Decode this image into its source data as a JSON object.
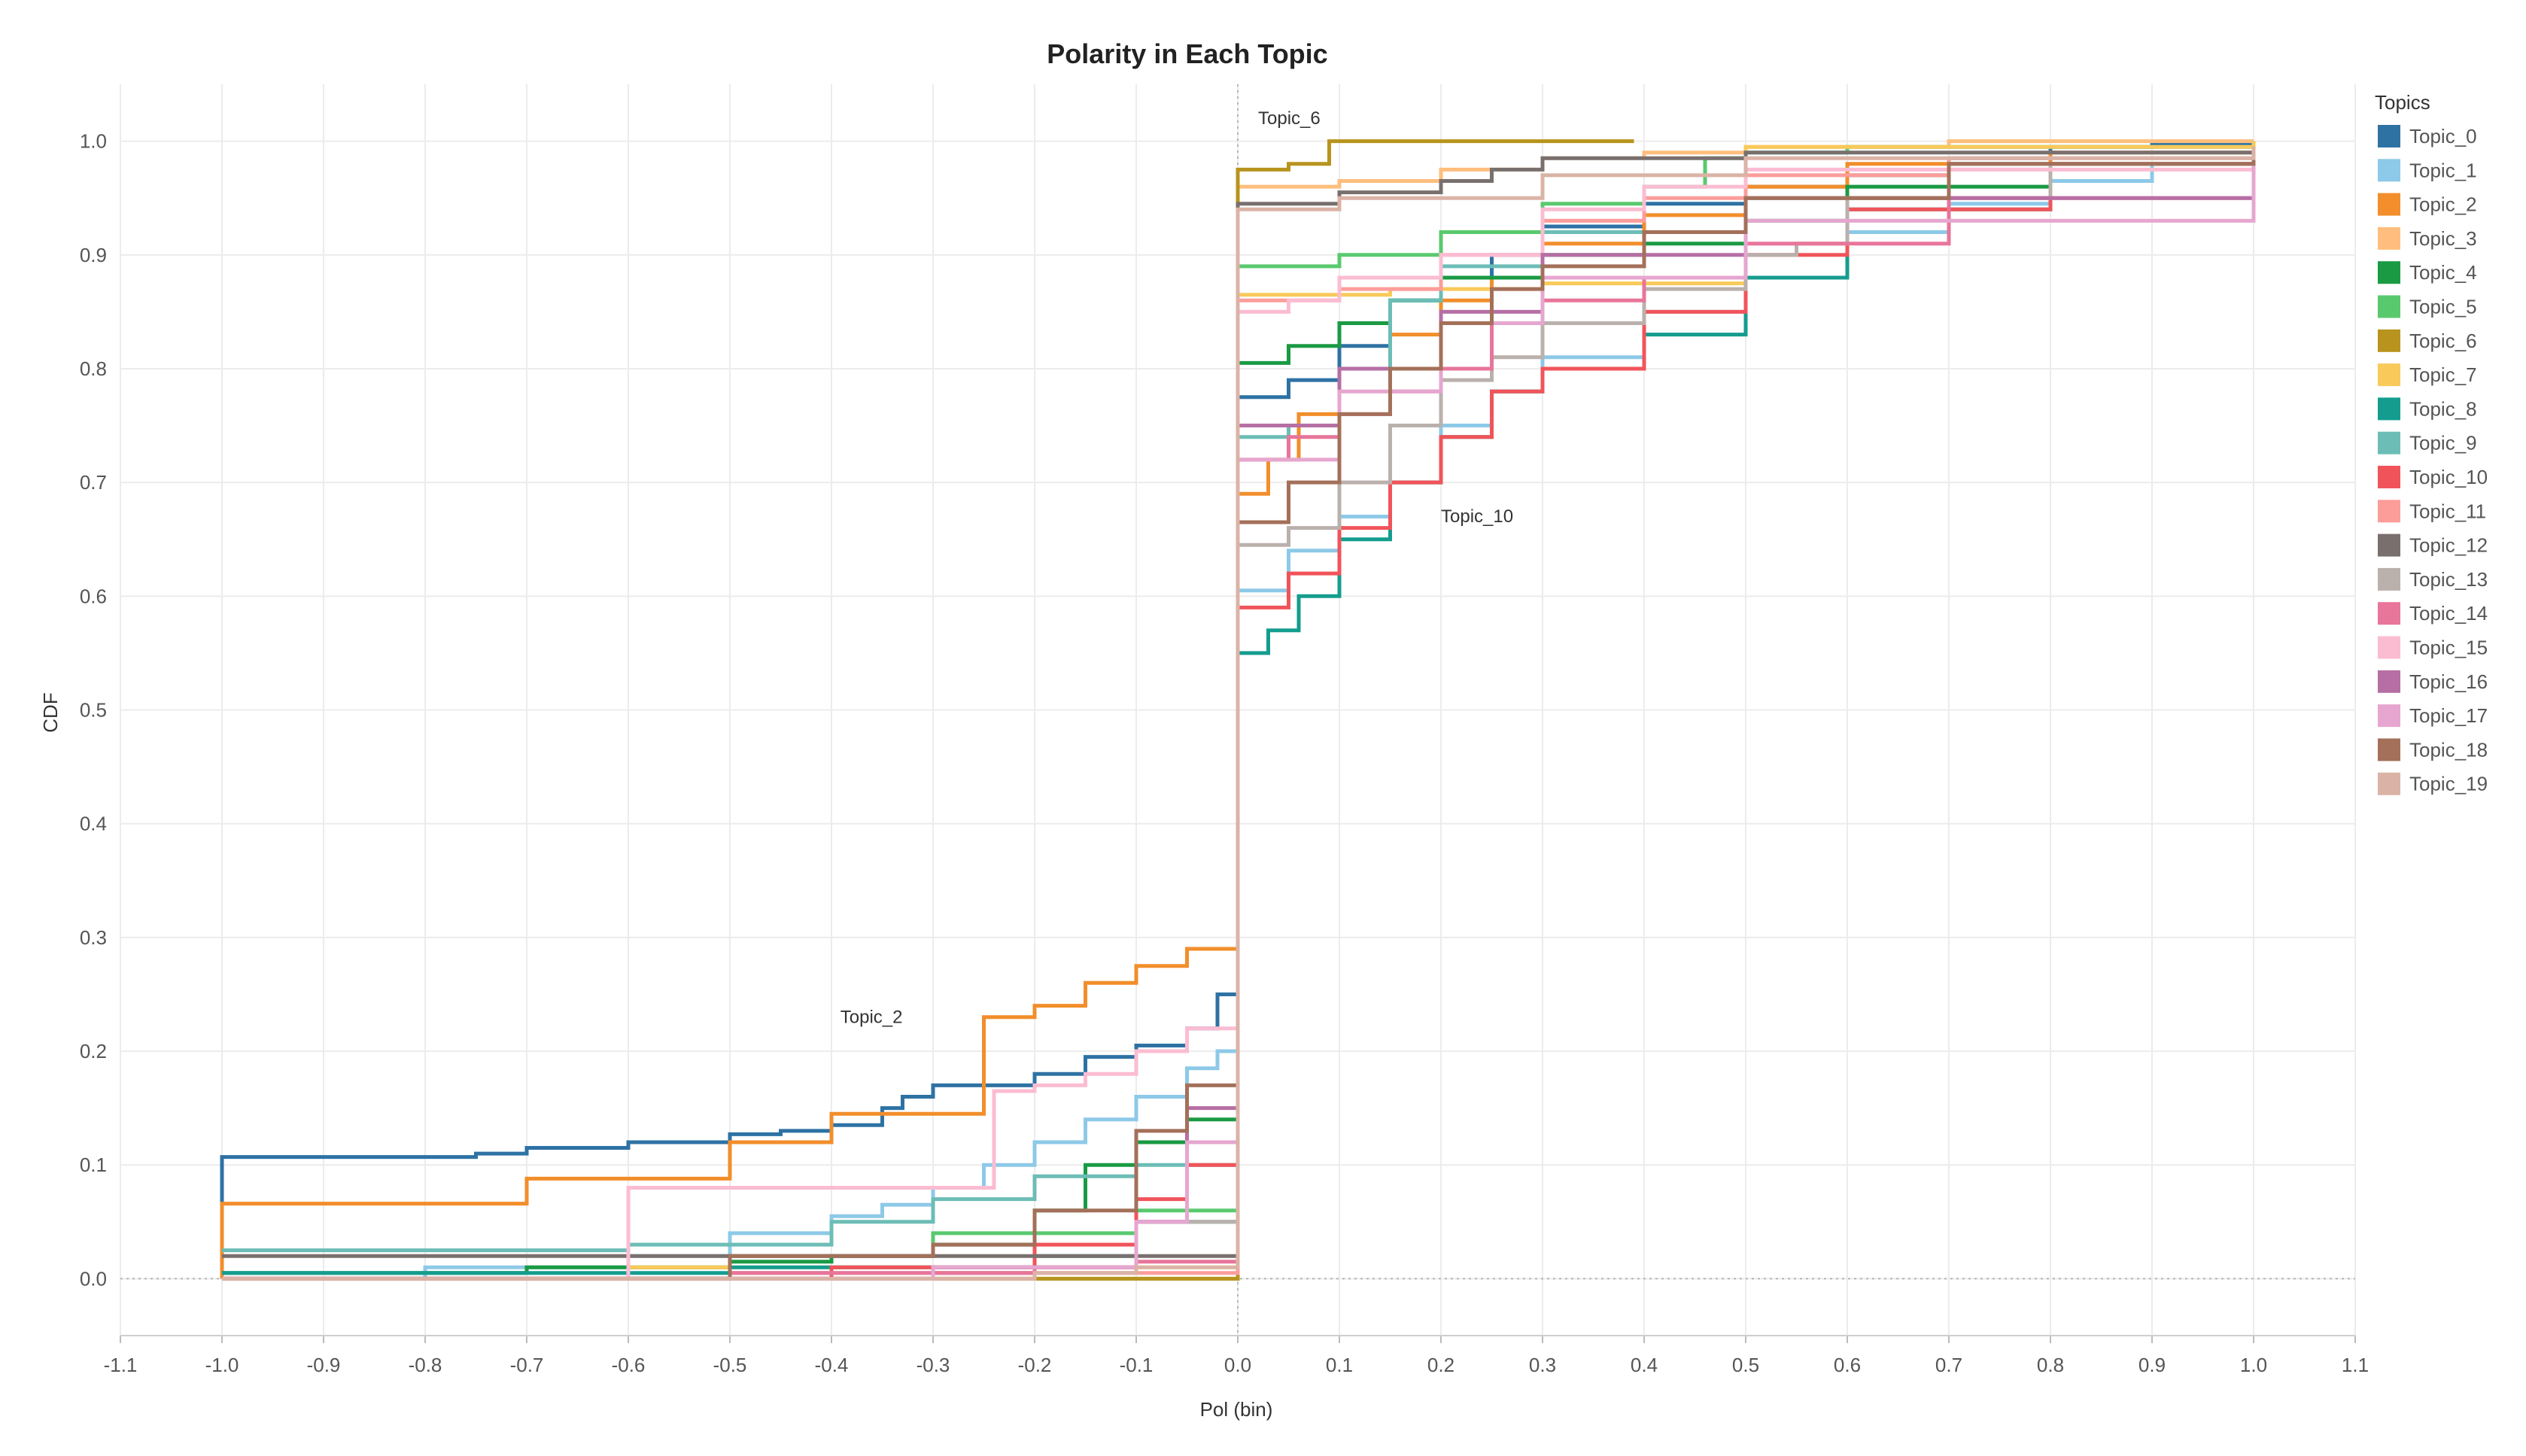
{
  "chart_data": {
    "type": "line",
    "step": true,
    "title": "Polarity in Each Topic",
    "xlabel": "Pol (bin)",
    "ylabel": "CDF",
    "xlim": [
      -1.1,
      1.1
    ],
    "ylim": [
      -0.05,
      1.05
    ],
    "grid": true,
    "xticks": [
      -1.1,
      -1.0,
      -0.9,
      -0.8,
      -0.7,
      -0.6,
      -0.5,
      -0.4,
      -0.3,
      -0.2,
      -0.1,
      0.0,
      0.1,
      0.2,
      0.3,
      0.4,
      0.5,
      0.6,
      0.7,
      0.8,
      0.9,
      1.0,
      1.1
    ],
    "xtick_labels": [
      "-1.1",
      "-1.0",
      "-0.9",
      "-0.8",
      "-0.7",
      "-0.6",
      "-0.5",
      "-0.4",
      "-0.3",
      "-0.2",
      "-0.1",
      "0.0",
      "0.1",
      "0.2",
      "0.3",
      "0.4",
      "0.5",
      "0.6",
      "0.7",
      "0.8",
      "0.9",
      "1.0",
      "1.1"
    ],
    "yticks": [
      0.0,
      0.1,
      0.2,
      0.3,
      0.4,
      0.5,
      0.6,
      0.7,
      0.8,
      0.9,
      1.0
    ],
    "ytick_labels": [
      "0.0",
      "0.1",
      "0.2",
      "0.3",
      "0.4",
      "0.5",
      "0.6",
      "0.7",
      "0.8",
      "0.9",
      "1.0"
    ],
    "legend": {
      "title": "Topics",
      "position": "right"
    },
    "annotations": [
      {
        "text": "Topic_6",
        "x": 0.02,
        "y": 1.015
      },
      {
        "text": "Topic_10",
        "x": 0.2,
        "y": 0.665
      },
      {
        "text": "Topic_2",
        "x": -0.33,
        "y": 0.225
      }
    ],
    "series": [
      {
        "name": "Topic_0",
        "color": "#2e72a4",
        "width": 5,
        "x": [
          -1.0,
          -1.0,
          -0.75,
          -0.7,
          -0.6,
          -0.55,
          -0.5,
          -0.45,
          -0.4,
          -0.35,
          -0.33,
          -0.3,
          -0.25,
          -0.2,
          -0.15,
          -0.1,
          -0.05,
          -0.02,
          0.0,
          0.0,
          0.0,
          0.05,
          0.1,
          0.15,
          0.2,
          0.25,
          0.3,
          0.4,
          0.5,
          0.6,
          0.7,
          0.8,
          0.9,
          1.0
        ],
        "y": [
          0.0,
          0.107,
          0.11,
          0.115,
          0.12,
          0.12,
          0.127,
          0.13,
          0.135,
          0.15,
          0.16,
          0.17,
          0.17,
          0.18,
          0.195,
          0.205,
          0.22,
          0.25,
          0.275,
          0.55,
          0.775,
          0.79,
          0.82,
          0.86,
          0.88,
          0.9,
          0.925,
          0.945,
          0.96,
          0.97,
          0.985,
          0.995,
          0.998,
          1.0
        ]
      },
      {
        "name": "Topic_1",
        "color": "#8dc9e8",
        "width": 5,
        "x": [
          -1.0,
          -0.8,
          -0.6,
          -0.5,
          -0.4,
          -0.35,
          -0.3,
          -0.25,
          -0.2,
          -0.15,
          -0.1,
          -0.05,
          -0.02,
          0.0,
          0.0,
          0.05,
          0.1,
          0.15,
          0.2,
          0.25,
          0.3,
          0.4,
          0.5,
          0.6,
          0.7,
          0.8,
          0.9,
          1.0
        ],
        "y": [
          0.0,
          0.01,
          0.02,
          0.04,
          0.055,
          0.065,
          0.08,
          0.1,
          0.12,
          0.14,
          0.16,
          0.185,
          0.2,
          0.205,
          0.605,
          0.64,
          0.67,
          0.7,
          0.75,
          0.78,
          0.81,
          0.85,
          0.88,
          0.92,
          0.945,
          0.965,
          0.98,
          0.99
        ]
      },
      {
        "name": "Topic_2",
        "color": "#f28e2b",
        "width": 5,
        "x": [
          -1.0,
          -1.0,
          -0.7,
          -0.5,
          -0.4,
          -0.25,
          -0.25,
          -0.2,
          -0.15,
          -0.1,
          -0.05,
          0.0,
          0.0,
          0.03,
          0.06,
          0.1,
          0.15,
          0.2,
          0.25,
          0.3,
          0.4,
          0.5,
          0.6,
          0.8,
          1.0
        ],
        "y": [
          0.0,
          0.066,
          0.088,
          0.12,
          0.145,
          0.15,
          0.23,
          0.24,
          0.26,
          0.275,
          0.29,
          0.3,
          0.69,
          0.72,
          0.76,
          0.8,
          0.83,
          0.86,
          0.88,
          0.91,
          0.935,
          0.96,
          0.98,
          0.99,
          0.995
        ]
      },
      {
        "name": "Topic_3",
        "color": "#ffbe7d",
        "width": 5,
        "x": [
          -1.0,
          -0.5,
          0.0,
          0.0,
          0.1,
          0.2,
          0.3,
          0.4,
          0.5,
          0.7,
          1.0
        ],
        "y": [
          0.0,
          0.0,
          0.0,
          0.96,
          0.965,
          0.975,
          0.985,
          0.99,
          0.995,
          1.0,
          1.0
        ]
      },
      {
        "name": "Topic_4",
        "color": "#1a9a43",
        "width": 5,
        "x": [
          -1.0,
          -0.7,
          -0.5,
          -0.4,
          -0.3,
          -0.2,
          -0.15,
          -0.1,
          -0.05,
          0.0,
          0.0,
          0.05,
          0.1,
          0.15,
          0.2,
          0.3,
          0.4,
          0.5,
          0.6,
          0.8,
          1.0
        ],
        "y": [
          0.005,
          0.01,
          0.015,
          0.02,
          0.03,
          0.06,
          0.1,
          0.12,
          0.14,
          0.15,
          0.805,
          0.82,
          0.84,
          0.86,
          0.88,
          0.9,
          0.91,
          0.93,
          0.96,
          0.98,
          0.99
        ]
      },
      {
        "name": "Topic_5",
        "color": "#59c96e",
        "width": 5,
        "x": [
          -1.0,
          -0.5,
          -0.3,
          -0.1,
          0.0,
          0.0,
          0.1,
          0.2,
          0.3,
          0.4,
          0.46,
          0.5,
          0.6,
          1.0
        ],
        "y": [
          0.0,
          0.02,
          0.04,
          0.06,
          0.065,
          0.89,
          0.9,
          0.92,
          0.945,
          0.96,
          0.985,
          0.99,
          0.995,
          1.0
        ]
      },
      {
        "name": "Topic_6",
        "color": "#b8941e",
        "width": 5,
        "x": [
          -1.0,
          -0.38,
          0.0,
          0.0,
          0.05,
          0.09,
          0.39
        ],
        "y": [
          0.0,
          0.0,
          0.003,
          0.975,
          0.98,
          1.0,
          1.0
        ]
      },
      {
        "name": "Topic_7",
        "color": "#f9c95a",
        "width": 5,
        "x": [
          -1.0,
          -0.6,
          0.0,
          0.0,
          0.15,
          0.3,
          0.5,
          0.5,
          1.0
        ],
        "y": [
          0.0,
          0.01,
          0.015,
          0.865,
          0.87,
          0.875,
          0.88,
          0.995,
          1.0
        ]
      },
      {
        "name": "Topic_8",
        "color": "#149d8e",
        "width": 5,
        "x": [
          -1.0,
          -0.5,
          -0.2,
          -0.1,
          0.0,
          0.0,
          0.03,
          0.06,
          0.1,
          0.15,
          0.2,
          0.25,
          0.3,
          0.4,
          0.5,
          0.6,
          0.8,
          1.0
        ],
        "y": [
          0.005,
          0.01,
          0.02,
          0.05,
          0.06,
          0.55,
          0.57,
          0.6,
          0.65,
          0.7,
          0.74,
          0.78,
          0.8,
          0.83,
          0.88,
          0.94,
          0.98,
          0.99
        ]
      },
      {
        "name": "Topic_9",
        "color": "#6cbdb6",
        "width": 5,
        "x": [
          -1.0,
          -0.6,
          -0.4,
          -0.3,
          -0.2,
          -0.1,
          0.0,
          0.0,
          0.05,
          0.1,
          0.15,
          0.2,
          0.3,
          0.5,
          0.7,
          1.0
        ],
        "y": [
          0.025,
          0.03,
          0.05,
          0.07,
          0.09,
          0.1,
          0.11,
          0.74,
          0.75,
          0.8,
          0.86,
          0.89,
          0.92,
          0.95,
          0.98,
          0.99
        ]
      },
      {
        "name": "Topic_10",
        "color": "#f0545a",
        "width": 5,
        "x": [
          -1.0,
          -0.4,
          -0.2,
          -0.1,
          -0.05,
          0.0,
          0.0,
          0.05,
          0.1,
          0.15,
          0.2,
          0.25,
          0.3,
          0.4,
          0.5,
          0.6,
          0.8,
          1.0
        ],
        "y": [
          0.0,
          0.01,
          0.03,
          0.07,
          0.1,
          0.12,
          0.59,
          0.62,
          0.66,
          0.7,
          0.74,
          0.78,
          0.8,
          0.85,
          0.9,
          0.94,
          0.98,
          0.99
        ]
      },
      {
        "name": "Topic_11",
        "color": "#fc9d9a",
        "width": 5,
        "x": [
          -1.0,
          -0.3,
          0.0,
          0.0,
          0.1,
          0.2,
          0.3,
          0.4,
          0.5,
          0.7,
          1.0
        ],
        "y": [
          0.0,
          0.005,
          0.01,
          0.86,
          0.87,
          0.9,
          0.93,
          0.95,
          0.97,
          0.985,
          0.995
        ]
      },
      {
        "name": "Topic_12",
        "color": "#79706e",
        "width": 5,
        "x": [
          -1.0,
          -0.5,
          0.0,
          0.0,
          0.1,
          0.2,
          0.25,
          0.3,
          0.5,
          1.0
        ],
        "y": [
          0.02,
          0.02,
          0.025,
          0.945,
          0.955,
          0.965,
          0.975,
          0.985,
          0.99,
          0.995
        ]
      },
      {
        "name": "Topic_13",
        "color": "#bab0ac",
        "width": 5,
        "x": [
          -1.0,
          -0.5,
          -0.2,
          -0.1,
          0.0,
          0.0,
          0.05,
          0.1,
          0.15,
          0.2,
          0.25,
          0.3,
          0.4,
          0.5,
          0.55,
          0.6,
          0.8,
          1.0
        ],
        "y": [
          0.0,
          0.005,
          0.01,
          0.05,
          0.08,
          0.645,
          0.66,
          0.7,
          0.75,
          0.79,
          0.81,
          0.84,
          0.87,
          0.9,
          0.91,
          0.95,
          0.98,
          0.99
        ]
      },
      {
        "name": "Topic_14",
        "color": "#e8759a",
        "width": 5,
        "x": [
          -1.0,
          -0.5,
          -0.2,
          -0.1,
          0.0,
          0.0,
          0.05,
          0.1,
          0.15,
          0.2,
          0.25,
          0.3,
          0.4,
          0.5,
          0.7,
          1.0
        ],
        "y": [
          0.0,
          0.005,
          0.01,
          0.015,
          0.02,
          0.72,
          0.74,
          0.76,
          0.78,
          0.8,
          0.84,
          0.86,
          0.88,
          0.91,
          0.95,
          0.985
        ]
      },
      {
        "name": "Topic_15",
        "color": "#fbbcd2",
        "width": 5,
        "x": [
          -1.0,
          -0.6,
          -0.6,
          -0.4,
          -0.24,
          -0.24,
          -0.2,
          -0.15,
          -0.1,
          -0.05,
          0.0,
          0.0,
          0.05,
          0.1,
          0.2,
          0.3,
          0.4,
          0.5,
          1.0
        ],
        "y": [
          0.0,
          0.0,
          0.08,
          0.08,
          0.08,
          0.165,
          0.17,
          0.18,
          0.2,
          0.22,
          0.24,
          0.85,
          0.86,
          0.88,
          0.9,
          0.94,
          0.96,
          0.975,
          0.99
        ]
      },
      {
        "name": "Topic_16",
        "color": "#b66fa4",
        "width": 5,
        "x": [
          -1.0,
          -0.3,
          -0.1,
          -0.05,
          0.0,
          0.0,
          0.1,
          0.2,
          0.3,
          0.5,
          1.0
        ],
        "y": [
          0.0,
          0.01,
          0.05,
          0.15,
          0.23,
          0.75,
          0.8,
          0.85,
          0.9,
          0.95,
          0.985
        ]
      },
      {
        "name": "Topic_17",
        "color": "#e6a6cf",
        "width": 5,
        "x": [
          -1.0,
          -0.3,
          -0.1,
          -0.05,
          0.0,
          0.0,
          0.1,
          0.2,
          0.3,
          0.5,
          1.0
        ],
        "y": [
          0.0,
          0.01,
          0.05,
          0.12,
          0.2,
          0.72,
          0.78,
          0.84,
          0.88,
          0.93,
          0.985
        ]
      },
      {
        "name": "Topic_18",
        "color": "#a4705a",
        "width": 5,
        "x": [
          -1.0,
          -0.5,
          -0.3,
          -0.2,
          -0.1,
          -0.05,
          0.0,
          0.0,
          0.05,
          0.1,
          0.15,
          0.2,
          0.25,
          0.3,
          0.4,
          0.5,
          0.7,
          1.0
        ],
        "y": [
          0.0,
          0.02,
          0.03,
          0.06,
          0.13,
          0.17,
          0.18,
          0.665,
          0.7,
          0.76,
          0.8,
          0.84,
          0.87,
          0.89,
          0.92,
          0.95,
          0.98,
          0.99
        ]
      },
      {
        "name": "Topic_19",
        "color": "#dbb3a6",
        "width": 5,
        "x": [
          -1.0,
          -0.2,
          -0.1,
          0.0,
          0.0,
          0.1,
          0.3,
          0.5,
          1.0
        ],
        "y": [
          0.0,
          0.005,
          0.01,
          0.015,
          0.94,
          0.95,
          0.97,
          0.985,
          0.995
        ]
      }
    ]
  }
}
